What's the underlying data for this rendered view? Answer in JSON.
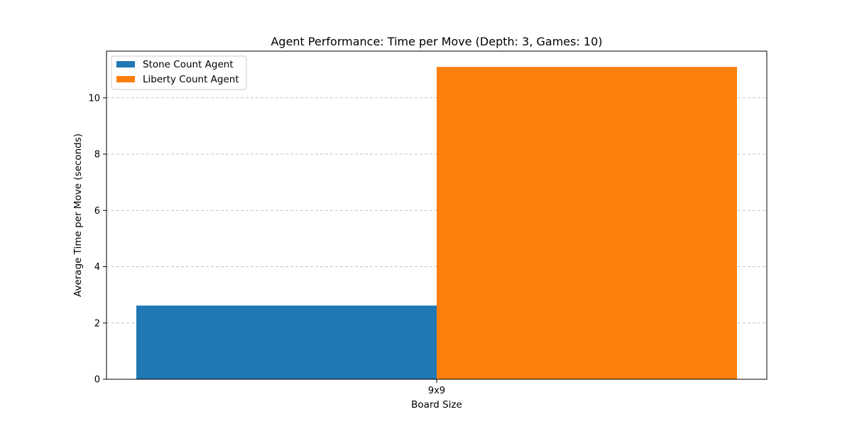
{
  "chart_data": {
    "type": "bar",
    "title": "Agent Performance: Time per Move (Depth: 3, Games: 10)",
    "xlabel": "Board Size",
    "ylabel": "Average Time per Move (seconds)",
    "categories": [
      "9x9"
    ],
    "series": [
      {
        "name": "Stone Count Agent",
        "values": [
          2.62
        ],
        "color": "#1f77b4"
      },
      {
        "name": "Liberty Count Agent",
        "values": [
          11.1
        ],
        "color": "#ff7f0e"
      }
    ],
    "ylim": [
      0,
      11.66
    ],
    "yticks": [
      "0",
      "2",
      "4",
      "6",
      "8",
      "10"
    ],
    "grid": "y-axis dashed",
    "legend_position": "top-left"
  }
}
